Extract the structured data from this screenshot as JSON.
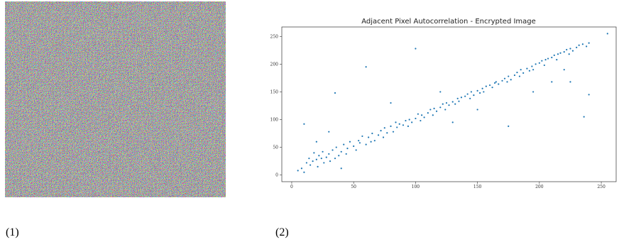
{
  "panel_labels": [
    "(1)",
    "(2)"
  ],
  "chart_data": {
    "type": "scatter",
    "title": "Adjacent Pixel Autocorrelation - Encrypted Image",
    "color": "#1f77b4",
    "xlim": [
      -8,
      262
    ],
    "ylim": [
      -12,
      267
    ],
    "xticks": [
      0,
      50,
      100,
      150,
      200,
      250
    ],
    "yticks": [
      0,
      50,
      100,
      150,
      200,
      250
    ],
    "x": [
      5,
      8,
      10,
      12,
      14,
      15,
      17,
      18,
      20,
      21,
      22,
      24,
      25,
      26,
      28,
      30,
      31,
      33,
      35,
      36,
      38,
      40,
      42,
      44,
      45,
      47,
      50,
      52,
      54,
      55,
      57,
      60,
      62,
      64,
      65,
      67,
      70,
      72,
      74,
      75,
      77,
      80,
      82,
      84,
      85,
      87,
      90,
      92,
      94,
      95,
      97,
      100,
      102,
      104,
      105,
      107,
      110,
      112,
      114,
      115,
      117,
      120,
      122,
      124,
      125,
      127,
      130,
      132,
      134,
      135,
      137,
      140,
      142,
      144,
      145,
      147,
      150,
      152,
      154,
      155,
      157,
      160,
      162,
      164,
      165,
      167,
      170,
      172,
      174,
      175,
      177,
      180,
      182,
      184,
      185,
      187,
      190,
      192,
      194,
      195,
      197,
      200,
      202,
      204,
      205,
      207,
      210,
      212,
      214,
      215,
      217,
      220,
      222,
      224,
      225,
      227,
      230,
      232,
      235,
      238,
      240,
      255,
      100,
      60,
      35,
      10,
      20,
      40,
      130,
      210,
      225,
      175,
      240,
      150,
      120,
      80,
      30,
      195,
      220,
      236
    ],
    "values": [
      8,
      12,
      5,
      22,
      30,
      18,
      25,
      40,
      28,
      15,
      35,
      30,
      42,
      22,
      32,
      38,
      25,
      45,
      30,
      50,
      35,
      42,
      55,
      38,
      48,
      60,
      52,
      45,
      62,
      58,
      70,
      55,
      68,
      60,
      75,
      62,
      72,
      80,
      68,
      85,
      76,
      88,
      78,
      95,
      86,
      92,
      90,
      98,
      88,
      100,
      95,
      102,
      110,
      98,
      108,
      104,
      112,
      118,
      108,
      120,
      115,
      122,
      128,
      118,
      130,
      126,
      132,
      128,
      138,
      133,
      140,
      142,
      146,
      138,
      150,
      144,
      152,
      148,
      156,
      150,
      160,
      162,
      158,
      166,
      168,
      164,
      170,
      174,
      168,
      178,
      172,
      180,
      185,
      178,
      190,
      184,
      192,
      188,
      196,
      190,
      200,
      202,
      206,
      198,
      208,
      210,
      212,
      216,
      208,
      218,
      220,
      222,
      226,
      218,
      228,
      224,
      230,
      234,
      236,
      232,
      238,
      255,
      228,
      195,
      148,
      92,
      60,
      12,
      95,
      168,
      168,
      88,
      145,
      118,
      150,
      130,
      78,
      150,
      190,
      105
    ]
  }
}
